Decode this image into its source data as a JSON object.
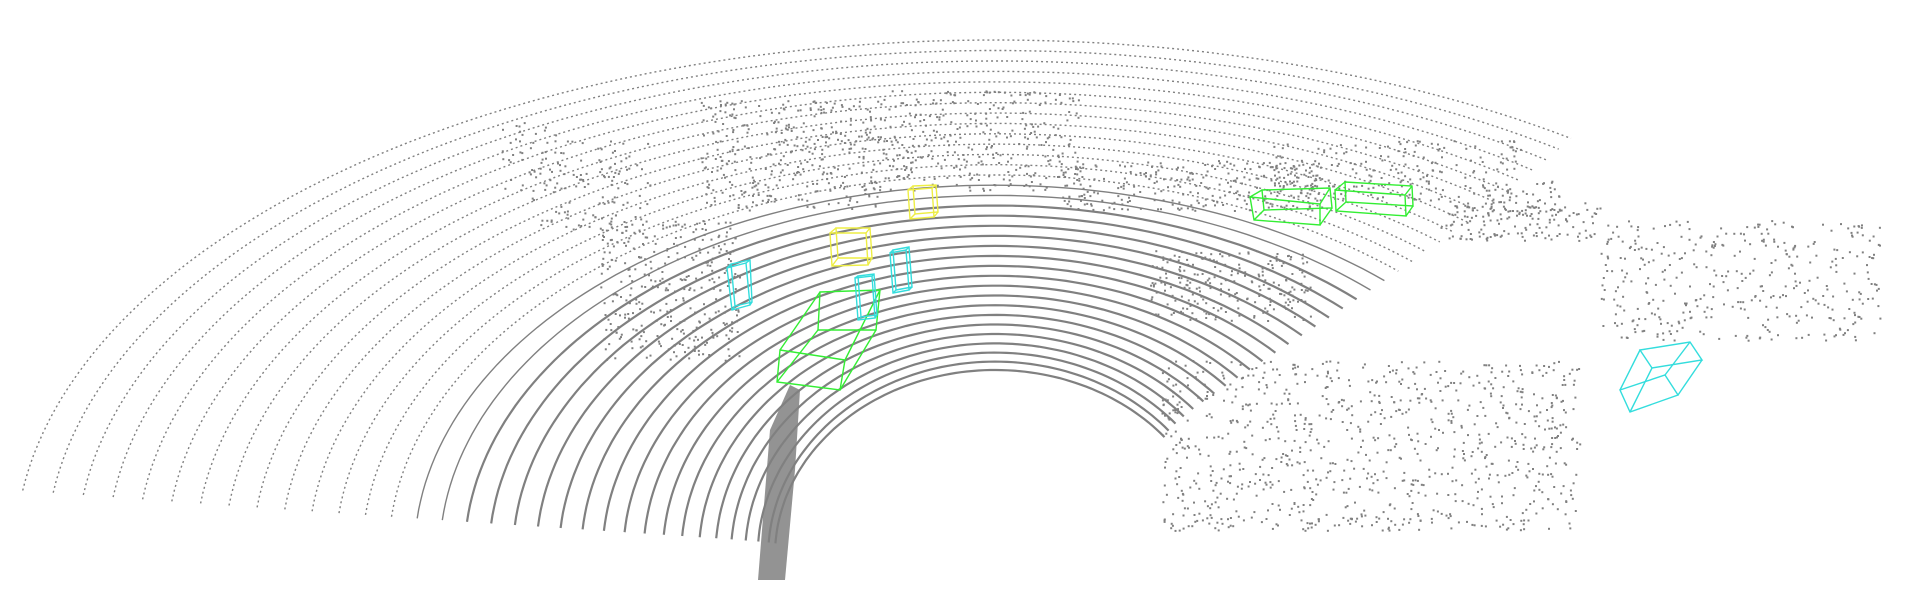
{
  "scene": {
    "background_color": "#ffffff",
    "point_color": "#808080",
    "class_colors": {
      "car": "#33ee33",
      "cyclist": "#eeee44",
      "pedestrian": "#33dddd"
    }
  },
  "detections": [
    {
      "class": "car",
      "index": 1
    },
    {
      "class": "car",
      "index": 2
    },
    {
      "class": "car",
      "index": 3
    },
    {
      "class": "cyclist",
      "index": 1
    },
    {
      "class": "cyclist",
      "index": 2
    },
    {
      "class": "pedestrian",
      "index": 1
    },
    {
      "class": "pedestrian",
      "index": 2
    },
    {
      "class": "pedestrian",
      "index": 3
    },
    {
      "class": "pedestrian",
      "index": 4
    }
  ]
}
